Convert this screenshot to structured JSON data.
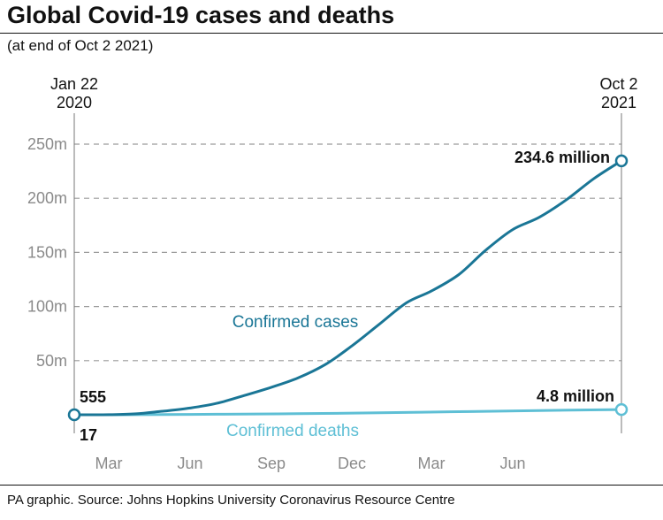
{
  "title": "Global Covid-19 cases and deaths",
  "subtitle": "(at end of Oct 2 2021)",
  "source": "PA graphic. Source: Johns Hopkins University Coronavirus Resource Centre",
  "colors": {
    "cases": "#1a7696",
    "deaths": "#5ebfd5",
    "grid": "#9a9a9a",
    "axis_text": "#8a8a8a"
  },
  "chart_data": {
    "type": "line",
    "title": "Global Covid-19 cases and deaths",
    "subtitle": "(at end of Oct 2 2021)",
    "x_start": {
      "line1": "Jan 22",
      "line2": "2020"
    },
    "x_end": {
      "line1": "Oct 2",
      "line2": "2021"
    },
    "x_range": [
      "2020-01-22",
      "2021-10-02"
    ],
    "x_ticks": [
      {
        "label": "Mar",
        "date": "2020-03-01"
      },
      {
        "label": "Jun",
        "date": "2020-06-01"
      },
      {
        "label": "Sep",
        "date": "2020-09-01"
      },
      {
        "label": "Dec",
        "date": "2020-12-01"
      },
      {
        "label": "Mar",
        "date": "2021-03-01"
      },
      {
        "label": "Jun",
        "date": "2021-06-01"
      }
    ],
    "y_unit": "million",
    "ylim": [
      0,
      250
    ],
    "y_ticks": [
      {
        "label": "50m",
        "value": 50
      },
      {
        "label": "100m",
        "value": 100
      },
      {
        "label": "150m",
        "value": 150
      },
      {
        "label": "200m",
        "value": 200
      },
      {
        "label": "250m",
        "value": 250
      }
    ],
    "grid": "horizontal dashed",
    "series": [
      {
        "name": "Confirmed cases",
        "start_label": "555",
        "end_label": "234.6 million",
        "points": [
          [
            "2020-01-22",
            0.000555
          ],
          [
            "2020-03-01",
            0.09
          ],
          [
            "2020-04-01",
            0.9
          ],
          [
            "2020-05-01",
            3.3
          ],
          [
            "2020-06-01",
            6.2
          ],
          [
            "2020-07-01",
            10.5
          ],
          [
            "2020-08-01",
            17.7
          ],
          [
            "2020-09-01",
            25.4
          ],
          [
            "2020-10-01",
            34.0
          ],
          [
            "2020-11-01",
            46.4
          ],
          [
            "2020-12-01",
            63.6
          ],
          [
            "2021-01-01",
            83.6
          ],
          [
            "2021-02-01",
            103.5
          ],
          [
            "2021-03-01",
            114.3
          ],
          [
            "2021-04-01",
            129.5
          ],
          [
            "2021-05-01",
            151.7
          ],
          [
            "2021-06-01",
            171.1
          ],
          [
            "2021-07-01",
            182.4
          ],
          [
            "2021-08-01",
            198.8
          ],
          [
            "2021-09-01",
            218.3
          ],
          [
            "2021-10-02",
            234.6
          ]
        ]
      },
      {
        "name": "Confirmed deaths",
        "start_label": "17",
        "end_label": "4.8 million",
        "points": [
          [
            "2020-01-22",
            1.7e-05
          ],
          [
            "2020-04-01",
            0.05
          ],
          [
            "2020-07-01",
            0.51
          ],
          [
            "2020-10-01",
            1.01
          ],
          [
            "2021-01-01",
            1.83
          ],
          [
            "2021-04-01",
            2.85
          ],
          [
            "2021-07-01",
            3.96
          ],
          [
            "2021-10-02",
            4.8
          ]
        ]
      }
    ]
  }
}
